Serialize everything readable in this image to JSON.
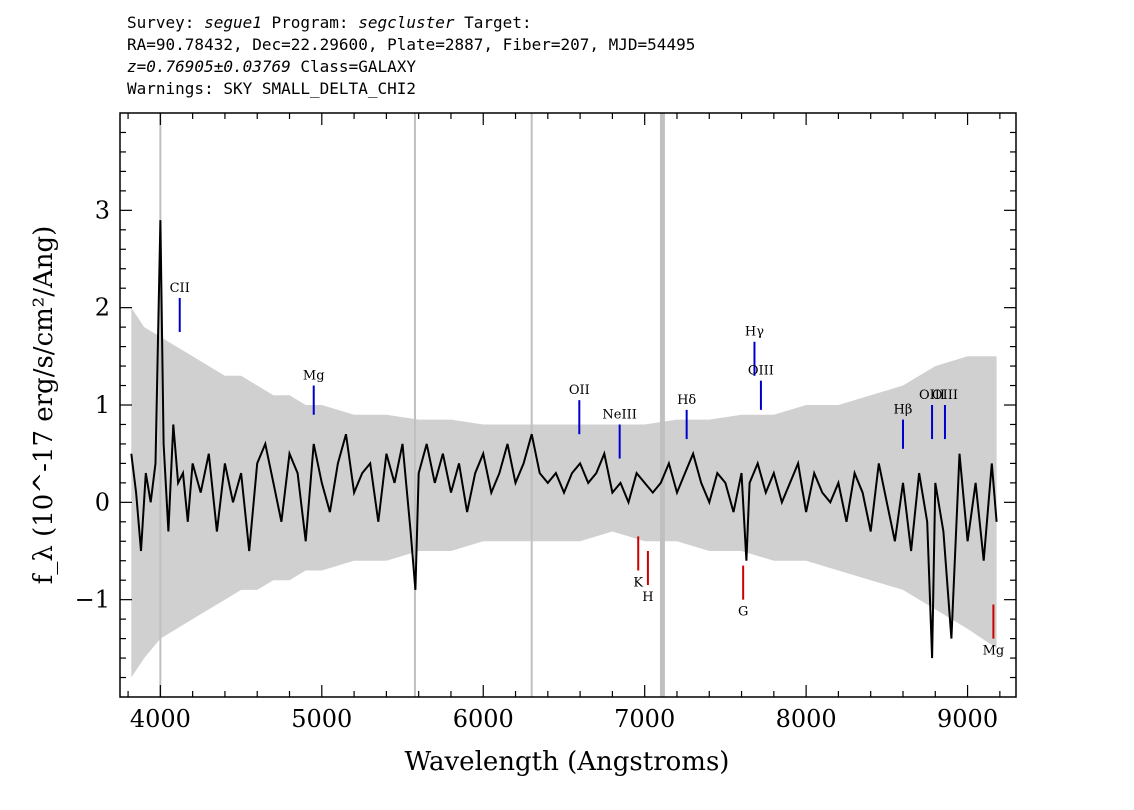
{
  "header": {
    "line1": {
      "survey_label": "Survey: ",
      "survey": "segue1",
      "program_label": " Program: ",
      "program": "segcluster",
      "target_label": " Target:"
    },
    "line2": "RA=90.78432, Dec=22.29600, Plate=2887, Fiber=207, MJD=54495",
    "line3": {
      "redshift": "z=0.76905±0.03769",
      "class": " Class=GALAXY"
    },
    "line4": "Warnings: SKY SMALL_DELTA_CHI2"
  },
  "chart_data": {
    "type": "line",
    "title": "",
    "xlabel": "Wavelength (Angstroms)",
    "ylabel": "f_λ (10^-17 erg/s/cm²/Ang)",
    "xlim": [
      3750,
      9300
    ],
    "ylim": [
      -2.0,
      4.0
    ],
    "xticks": [
      4000,
      5000,
      6000,
      7000,
      8000,
      9000
    ],
    "yticks": [
      -1,
      0,
      1,
      2,
      3
    ],
    "colors": {
      "flux": "#000000",
      "error_band": "#c0c0c0",
      "emission": "#0000cc",
      "absorption": "#cc0000"
    },
    "series": [
      {
        "style": "black-line",
        "x": [
          3820,
          3850,
          3880,
          3910,
          3940,
          3970,
          4000,
          4020,
          4050,
          4080,
          4110,
          4140,
          4170,
          4200,
          4250,
          4300,
          4350,
          4400,
          4450,
          4500,
          4550,
          4600,
          4650,
          4700,
          4750,
          4800,
          4850,
          4900,
          4950,
          5000,
          5050,
          5100,
          5150,
          5200,
          5250,
          5300,
          5350,
          5400,
          5450,
          5500,
          5550,
          5580,
          5600,
          5650,
          5700,
          5750,
          5800,
          5850,
          5900,
          5950,
          6000,
          6050,
          6100,
          6150,
          6200,
          6250,
          6300,
          6350,
          6400,
          6450,
          6500,
          6550,
          6600,
          6650,
          6700,
          6750,
          6800,
          6850,
          6900,
          6950,
          7000,
          7050,
          7100,
          7150,
          7200,
          7250,
          7300,
          7350,
          7400,
          7450,
          7500,
          7550,
          7600,
          7630,
          7650,
          7700,
          7750,
          7800,
          7850,
          7900,
          7950,
          8000,
          8050,
          8100,
          8150,
          8200,
          8250,
          8300,
          8350,
          8400,
          8450,
          8500,
          8550,
          8600,
          8650,
          8700,
          8750,
          8780,
          8800,
          8850,
          8900,
          8950,
          9000,
          9050,
          9100,
          9150,
          9180
        ],
        "y": [
          0.5,
          0.1,
          -0.5,
          0.3,
          0.0,
          0.4,
          2.9,
          0.6,
          -0.3,
          0.8,
          0.2,
          0.3,
          -0.2,
          0.4,
          0.1,
          0.5,
          -0.3,
          0.4,
          0.0,
          0.3,
          -0.5,
          0.4,
          0.6,
          0.2,
          -0.2,
          0.5,
          0.3,
          -0.4,
          0.6,
          0.2,
          -0.1,
          0.4,
          0.7,
          0.1,
          0.3,
          0.4,
          -0.2,
          0.5,
          0.2,
          0.6,
          -0.3,
          -0.9,
          0.3,
          0.6,
          0.2,
          0.5,
          0.1,
          0.4,
          -0.1,
          0.3,
          0.5,
          0.1,
          0.3,
          0.6,
          0.2,
          0.4,
          0.7,
          0.3,
          0.2,
          0.3,
          0.1,
          0.3,
          0.4,
          0.2,
          0.3,
          0.5,
          0.1,
          0.2,
          0.0,
          0.3,
          0.2,
          0.1,
          0.2,
          0.4,
          0.1,
          0.3,
          0.5,
          0.2,
          0.0,
          0.3,
          0.2,
          -0.1,
          0.3,
          -0.6,
          0.2,
          0.4,
          0.1,
          0.3,
          0.0,
          0.2,
          0.4,
          -0.1,
          0.3,
          0.1,
          0.0,
          0.2,
          -0.2,
          0.3,
          0.1,
          -0.3,
          0.4,
          0.0,
          -0.4,
          0.2,
          -0.5,
          0.3,
          -0.2,
          -1.6,
          0.2,
          -0.3,
          -1.4,
          0.5,
          -0.4,
          0.2,
          -0.6,
          0.4,
          -0.2
        ]
      }
    ],
    "error_band": {
      "x": [
        3820,
        3900,
        4000,
        4100,
        4200,
        4300,
        4400,
        4500,
        4600,
        4700,
        4800,
        4900,
        5000,
        5200,
        5400,
        5600,
        5800,
        6000,
        6200,
        6400,
        6600,
        6800,
        7000,
        7200,
        7400,
        7600,
        7800,
        8000,
        8200,
        8400,
        8600,
        8800,
        9000,
        9180
      ],
      "upper": [
        2.0,
        1.8,
        1.7,
        1.6,
        1.5,
        1.4,
        1.3,
        1.3,
        1.2,
        1.1,
        1.1,
        1.0,
        1.0,
        0.9,
        0.9,
        0.85,
        0.85,
        0.8,
        0.8,
        0.8,
        0.8,
        0.8,
        0.8,
        0.85,
        0.85,
        0.9,
        0.9,
        1.0,
        1.0,
        1.1,
        1.2,
        1.4,
        1.5,
        1.5
      ],
      "lower": [
        -1.8,
        -1.6,
        -1.4,
        -1.3,
        -1.2,
        -1.1,
        -1.0,
        -0.9,
        -0.9,
        -0.8,
        -0.8,
        -0.7,
        -0.7,
        -0.6,
        -0.6,
        -0.5,
        -0.5,
        -0.4,
        -0.4,
        -0.4,
        -0.4,
        -0.3,
        -0.4,
        -0.4,
        -0.5,
        -0.5,
        -0.6,
        -0.6,
        -0.7,
        -0.8,
        -0.9,
        -1.1,
        -1.3,
        -1.5
      ]
    },
    "gray_vlines": [
      4000,
      5577,
      6300,
      7110
    ],
    "emission_lines": [
      {
        "label": "CII",
        "x": 4120,
        "y0": 1.75,
        "y1": 2.1
      },
      {
        "label": "Mg",
        "x": 4950,
        "y0": 0.9,
        "y1": 1.2
      },
      {
        "label": "OII",
        "x": 6595,
        "y0": 0.7,
        "y1": 1.05
      },
      {
        "label": "NeIII",
        "x": 6845,
        "y0": 0.45,
        "y1": 0.8
      },
      {
        "label": "Hδ",
        "x": 7260,
        "y0": 0.65,
        "y1": 0.95
      },
      {
        "label": "Hγ",
        "x": 7680,
        "y0": 1.3,
        "y1": 1.65
      },
      {
        "label": "OIII",
        "x": 7720,
        "y0": 0.95,
        "y1": 1.25
      },
      {
        "label": "Hβ",
        "x": 8600,
        "y0": 0.55,
        "y1": 0.85
      },
      {
        "label": "OIII",
        "x": 8780,
        "y0": 0.65,
        "y1": 1.0
      },
      {
        "label": "OIII",
        "x": 8860,
        "y0": 0.65,
        "y1": 1.0
      }
    ],
    "absorption_lines": [
      {
        "label": "K",
        "x": 6960,
        "y0": -0.35,
        "y1": -0.7
      },
      {
        "label": "H",
        "x": 7020,
        "y0": -0.5,
        "y1": -0.85
      },
      {
        "label": "G",
        "x": 7610,
        "y0": -0.65,
        "y1": -1.0
      },
      {
        "label": "Mg",
        "x": 9160,
        "y0": -1.05,
        "y1": -1.4
      }
    ]
  }
}
